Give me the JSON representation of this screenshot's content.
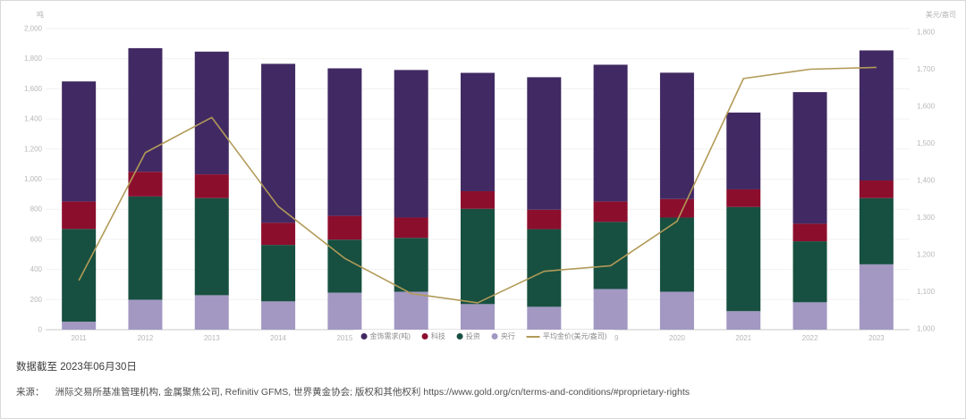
{
  "page": {
    "background": "#ffffff",
    "border_color": "#d9d9d9"
  },
  "chart_data": {
    "type": "bar",
    "variant": "stacked-bars-with-right-axis-line",
    "title": "",
    "categories": [
      "2011",
      "2012",
      "2013",
      "2014",
      "2015",
      "2016",
      "2017",
      "2018",
      "2019",
      "2020",
      "2021",
      "2022",
      "2023"
    ],
    "series": [
      {
        "name": "金饰需求(吨)",
        "color": "#412a63",
        "values": [
          798,
          821,
          815,
          1056,
          980,
          980,
          786,
          880,
          909,
          839,
          510,
          874,
          864
        ]
      },
      {
        "name": "科技",
        "color": "#8c0e2d",
        "values": [
          182,
          164,
          158,
          147,
          158,
          135,
          117,
          129,
          135,
          123,
          117,
          117,
          117
        ]
      },
      {
        "name": "投资",
        "color": "#175040",
        "values": [
          616,
          686,
          645,
          375,
          352,
          358,
          633,
          516,
          446,
          493,
          692,
          405,
          440
        ]
      },
      {
        "name": "央行",
        "color": "#a298c2",
        "values": [
          53,
          199,
          229,
          188,
          246,
          252,
          170,
          152,
          270,
          252,
          123,
          182,
          434
        ]
      }
    ],
    "stack_order_bottom_to_top": [
      "央行",
      "投资",
      "科技",
      "金饰需求(吨)"
    ],
    "line_series": {
      "name": "平均金价(美元/盎司)",
      "color": "#b29a58",
      "axis": "right",
      "values": [
        1130,
        1475,
        1570,
        1330,
        1190,
        1095,
        1070,
        1155,
        1170,
        1290,
        1675,
        1700,
        1705
      ]
    },
    "left_axis": {
      "title": "吨",
      "min": 0,
      "max": 2000,
      "tick_labels": [
        "0",
        "200",
        "400",
        "600",
        "800",
        "1,000",
        "1,200",
        "1,400",
        "1,600",
        "1,800",
        "2,000"
      ]
    },
    "right_axis": {
      "title": "美元/盎司",
      "min": 1000,
      "max": 1800,
      "tick_labels": [
        "1,000",
        "1,100",
        "1,200",
        "1,300",
        "1,400",
        "1,500",
        "1,600",
        "1,700",
        "1,800"
      ]
    },
    "grid": true,
    "legend_position": "bottom-center"
  },
  "footer": {
    "as_of": "数据截至 2023年06月30日",
    "source_label": "来源：",
    "source_text": "洲际交易所基准管理机构, 金属聚焦公司, Refinitiv GFMS, 世界黄金协会; 版权和其他权利",
    "source_url": "https://www.gold.org/cn/terms-and-conditions/#proprietary-rights"
  }
}
